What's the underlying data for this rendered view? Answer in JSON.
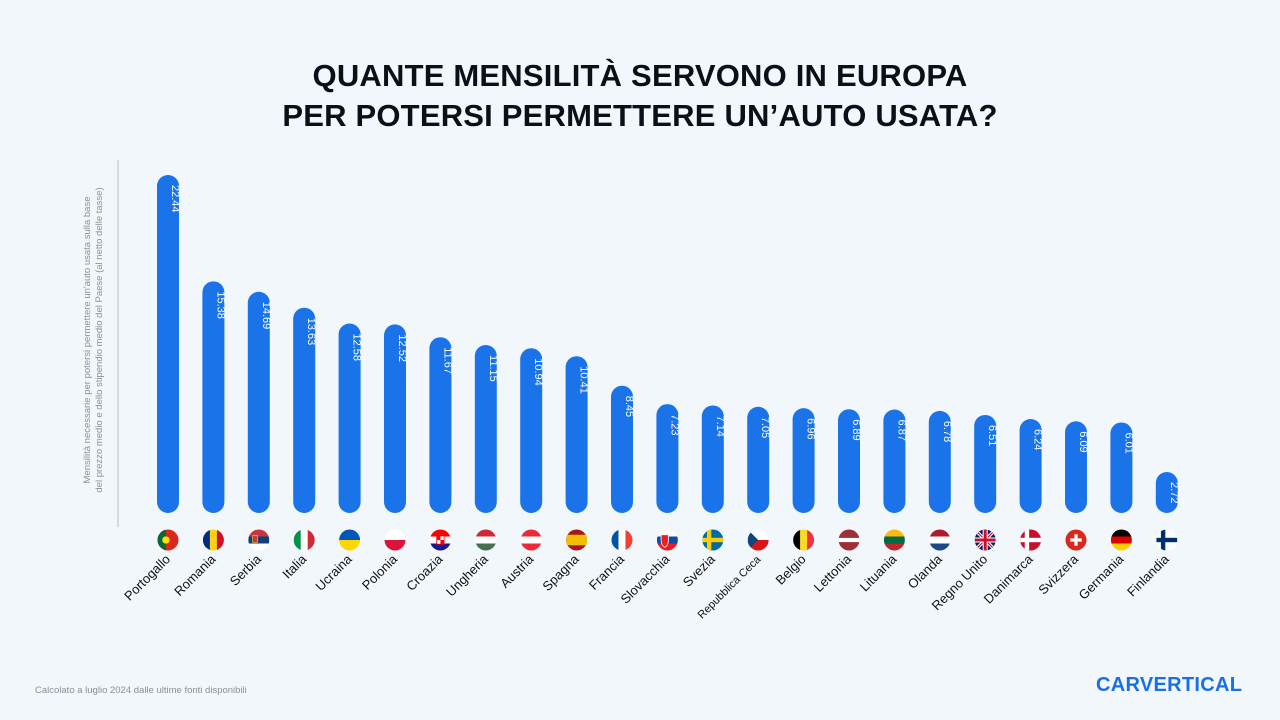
{
  "title": {
    "line1": "QUANTE MENSILITÀ SERVONO IN EUROPA",
    "line2": "PER POTERSI PERMETTERE UN’AUTO USATA?"
  },
  "footnote": "Calcolato a luglio 2024 dalle ultime fonti disponibili",
  "logo": "CARVERTICAL",
  "colors": {
    "bar": "#1a73e8",
    "background": "#f1f7fb",
    "axis": "#9aa0a6"
  },
  "chart_data": {
    "type": "bar",
    "orientation": "vertical",
    "title": "QUANTE MENSILITÀ SERVONO IN EUROPA PER POTERSI PERMETTERE UN’AUTO USATA?",
    "ylabel_line1": "Mensilità necessarie per potersi permettere un'auto usata sulla base",
    "ylabel_line2": "del prezzo medio e dello stipendio medio del Paese (al netto delle tasse)",
    "xlabel": "",
    "ylim": [
      0,
      23
    ],
    "grid": false,
    "data_labels": true,
    "categories": [
      "Portogallo",
      "Romania",
      "Serbia",
      "Italia",
      "Ucraina",
      "Polonia",
      "Croazia",
      "Ungheria",
      "Austria",
      "Spagna",
      "Francia",
      "Slovacchia",
      "Svezia",
      "Repubblica Ceca",
      "Belgio",
      "Lettonia",
      "Lituania",
      "Olanda",
      "Regno Unito",
      "Danimarca",
      "Svizzera",
      "Germania",
      "Finlandia"
    ],
    "values": [
      22.44,
      15.38,
      14.69,
      13.63,
      12.58,
      12.52,
      11.67,
      11.15,
      10.94,
      10.41,
      8.45,
      7.23,
      7.14,
      7.05,
      6.96,
      6.89,
      6.87,
      6.78,
      6.51,
      6.24,
      6.09,
      6.01,
      2.72
    ],
    "flags": [
      "portugal-flag",
      "romania-flag",
      "serbia-flag",
      "italy-flag",
      "ukraine-flag",
      "poland-flag",
      "croatia-flag",
      "hungary-flag",
      "austria-flag",
      "spain-flag",
      "france-flag",
      "slovakia-flag",
      "sweden-flag",
      "czech-flag",
      "belgium-flag",
      "latvia-flag",
      "lithuania-flag",
      "netherlands-flag",
      "uk-flag",
      "denmark-flag",
      "switzerland-flag",
      "germany-flag",
      "finland-flag"
    ]
  }
}
